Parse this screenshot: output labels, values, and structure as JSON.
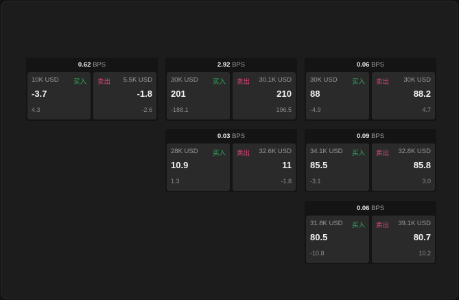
{
  "unit": "BPS",
  "buy_label": "买入",
  "sell_label": "卖出",
  "colors": {
    "buy": "#2fae60",
    "sell": "#e0457b"
  },
  "cards": [
    {
      "spread": "0.62",
      "bid_qty": "10K USD",
      "bid": "-3.7",
      "bid_change": "4.3",
      "ask_qty": "5.5K USD",
      "ask": "-1.8",
      "ask_change": "-2.6"
    },
    {
      "spread": "2.92",
      "bid_qty": "30K USD",
      "bid": "201",
      "bid_change": "-188.1",
      "ask_qty": "30.1K USD",
      "ask": "210",
      "ask_change": "196.5"
    },
    {
      "spread": "0.06",
      "bid_qty": "30K USD",
      "bid": "88",
      "bid_change": "-4.9",
      "ask_qty": "30K USD",
      "ask": "88.2",
      "ask_change": "4.7"
    },
    {
      "spread": "0.03",
      "bid_qty": "28K USD",
      "bid": "10.9",
      "bid_change": "1.3",
      "ask_qty": "32.6K USD",
      "ask": "11",
      "ask_change": "-1.8"
    },
    {
      "spread": "0.09",
      "bid_qty": "34.1K USD",
      "bid": "85.5",
      "bid_change": "-3.1",
      "ask_qty": "32.8K USD",
      "ask": "85.8",
      "ask_change": "3.0"
    },
    {
      "spread": "0.06",
      "bid_qty": "31.8K USD",
      "bid": "80.5",
      "bid_change": "-10.8",
      "ask_qty": "39.1K USD",
      "ask": "80.7",
      "ask_change": "10.2"
    }
  ]
}
